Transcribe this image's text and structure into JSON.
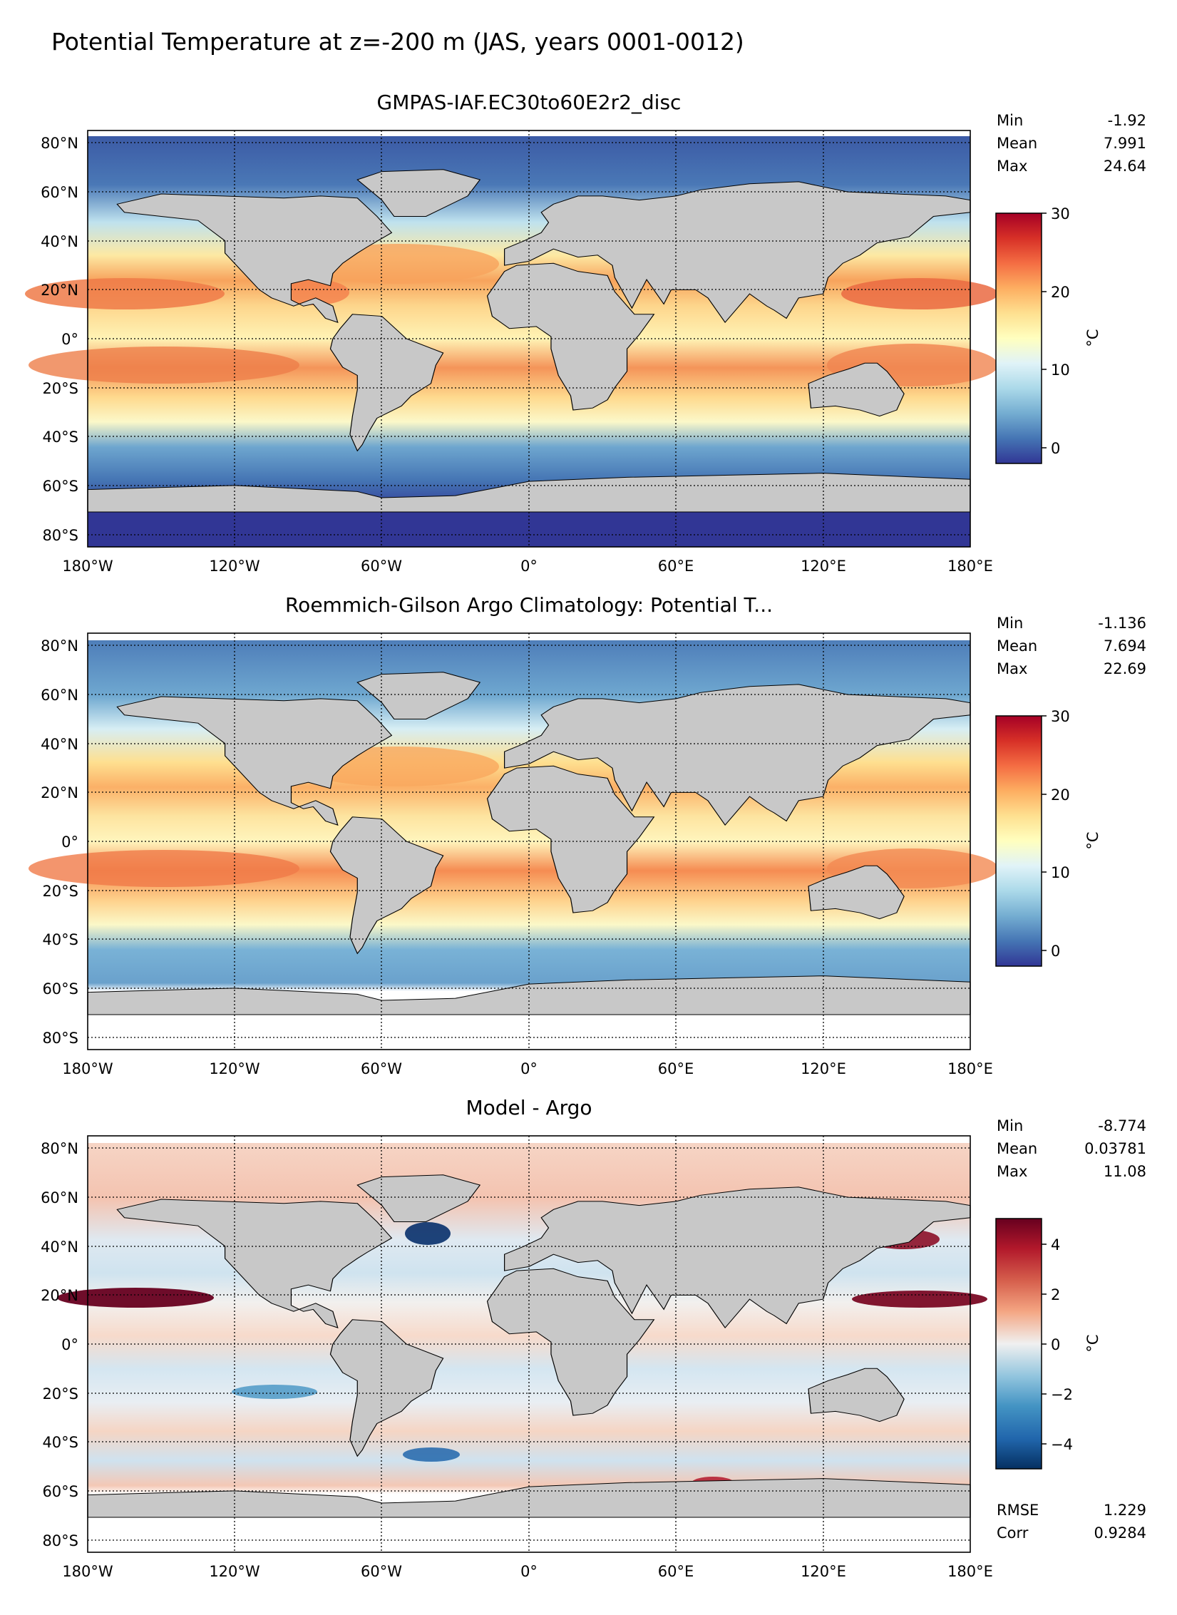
{
  "figure": {
    "title": "Potential Temperature at z=-200 m (JAS, years 0001-0012)"
  },
  "colors": {
    "land": "#c8c8c8",
    "missing": "#ffffff",
    "coast": "#000000",
    "grid": "#000000"
  },
  "chart_data": [
    {
      "type": "heatmap",
      "title": "GMPAS-IAF.EC30to60E2r2_disc",
      "x_ticks": [
        "180°W",
        "120°W",
        "60°W",
        "0°",
        "60°E",
        "120°E",
        "180°E"
      ],
      "y_ticks": [
        "80°N",
        "60°N",
        "40°N",
        "20°N",
        "0°",
        "20°S",
        "40°S",
        "60°S",
        "80°S"
      ],
      "xlim": [
        -180,
        180
      ],
      "ylim": [
        -85,
        85
      ],
      "grid": true,
      "stats": [
        {
          "label": "Min",
          "value": "-1.92"
        },
        {
          "label": "Mean",
          "value": "7.991"
        },
        {
          "label": "Max",
          "value": "24.64"
        }
      ],
      "colorbar": {
        "label": "°C",
        "colormap": "RdYlBu_r",
        "range": [
          -2,
          30
        ],
        "ticks": [
          "0",
          "10",
          "20",
          "30"
        ],
        "tick_values": [
          0,
          10,
          20,
          30
        ]
      }
    },
    {
      "type": "heatmap",
      "title": "Roemmich-Gilson Argo Climatology: Potential T...",
      "x_ticks": [
        "180°W",
        "120°W",
        "60°W",
        "0°",
        "60°E",
        "120°E",
        "180°E"
      ],
      "y_ticks": [
        "80°N",
        "60°N",
        "40°N",
        "20°N",
        "0°",
        "20°S",
        "40°S",
        "60°S",
        "80°S"
      ],
      "xlim": [
        -180,
        180
      ],
      "ylim": [
        -85,
        85
      ],
      "grid": true,
      "stats": [
        {
          "label": "Min",
          "value": "-1.136"
        },
        {
          "label": "Mean",
          "value": "7.694"
        },
        {
          "label": "Max",
          "value": "22.69"
        }
      ],
      "colorbar": {
        "label": "°C",
        "colormap": "RdYlBu_r",
        "range": [
          -2,
          30
        ],
        "ticks": [
          "0",
          "10",
          "20",
          "30"
        ],
        "tick_values": [
          0,
          10,
          20,
          30
        ]
      }
    },
    {
      "type": "heatmap",
      "title": "Model - Argo",
      "x_ticks": [
        "180°W",
        "120°W",
        "60°W",
        "0°",
        "60°E",
        "120°E",
        "180°E"
      ],
      "y_ticks": [
        "80°N",
        "60°N",
        "40°N",
        "20°N",
        "0°",
        "20°S",
        "40°S",
        "60°S",
        "80°S"
      ],
      "xlim": [
        -180,
        180
      ],
      "ylim": [
        -85,
        85
      ],
      "grid": true,
      "stats": [
        {
          "label": "Min",
          "value": "-8.774"
        },
        {
          "label": "Mean",
          "value": "0.03781"
        },
        {
          "label": "Max",
          "value": "11.08"
        }
      ],
      "extra_stats": [
        {
          "label": "RMSE",
          "value": "1.229"
        },
        {
          "label": "Corr",
          "value": "0.9284"
        }
      ],
      "colorbar": {
        "label": "°C",
        "colormap": "RdBu_r",
        "range": [
          -5,
          5
        ],
        "ticks": [
          "−4",
          "−2",
          "0",
          "2",
          "4"
        ],
        "tick_values": [
          -4,
          -2,
          0,
          2,
          4
        ]
      }
    }
  ]
}
